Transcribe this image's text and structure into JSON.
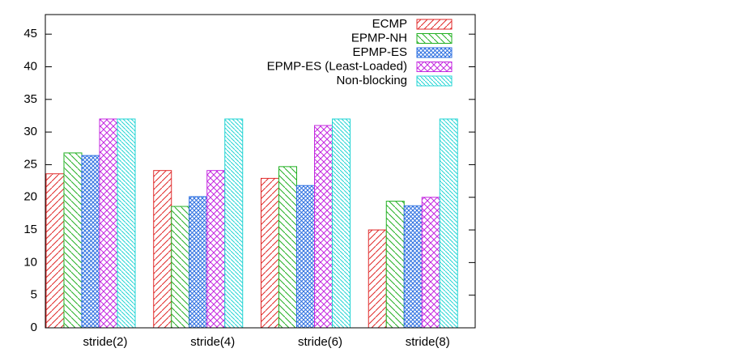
{
  "chart_data": {
    "type": "bar",
    "categories": [
      "stride(2)",
      "stride(4)",
      "stride(6)",
      "stride(8)"
    ],
    "series": [
      {
        "name": "ECMP",
        "color": "#e02828",
        "values": [
          23.6,
          24.1,
          22.9,
          15.0
        ]
      },
      {
        "name": "EPMP-NH",
        "color": "#22b022",
        "values": [
          26.8,
          18.6,
          24.7,
          19.4
        ]
      },
      {
        "name": "EPMP-ES",
        "color": "#2a6ee0",
        "values": [
          26.4,
          20.1,
          21.8,
          18.7
        ]
      },
      {
        "name": "EPMP-ES (Least-Loaded)",
        "color": "#c428e0",
        "values": [
          32,
          24.1,
          31.0,
          20.0
        ]
      },
      {
        "name": "Non-blocking",
        "color": "#22d4d4",
        "values": [
          32,
          32,
          32,
          32
        ]
      }
    ],
    "ylim": [
      0,
      48
    ],
    "yticks": [
      0,
      5,
      10,
      15,
      20,
      25,
      30,
      35,
      40,
      45
    ],
    "legend": "upper right"
  }
}
